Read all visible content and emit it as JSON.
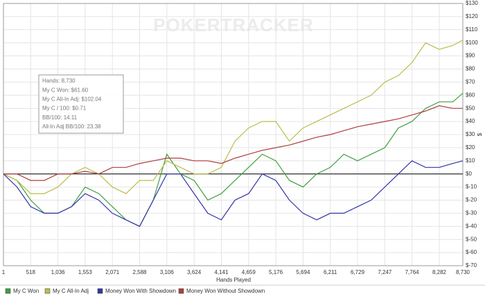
{
  "chart_data": {
    "type": "line",
    "watermark": "POKERTRACKER",
    "x_label": "Hands Played",
    "y_label": "$",
    "tooltip": [
      "Hands: 8,730",
      "My C Won: $61.60",
      "My C All-In Adj: $102.04",
      "My C / 100: $0.71",
      "BB/100: 14.11",
      "All-In Adj BB/100: 23.38"
    ],
    "x": [
      1,
      259,
      518,
      777,
      1036,
      1295,
      1553,
      1812,
      2071,
      2330,
      2588,
      2847,
      3106,
      3365,
      3624,
      3883,
      4141,
      4400,
      4659,
      4918,
      5176,
      5435,
      5694,
      5953,
      6211,
      6470,
      6729,
      6988,
      7247,
      7506,
      7764,
      8023,
      8282,
      8541,
      8730
    ],
    "series": [
      {
        "name": "My C Won",
        "color": "#3f9f3f",
        "values": [
          0,
          -5,
          -20,
          -30,
          -30,
          -25,
          -10,
          -15,
          -25,
          -35,
          -40,
          -20,
          15,
          0,
          -5,
          -20,
          -15,
          -5,
          5,
          15,
          10,
          -5,
          -10,
          0,
          5,
          15,
          10,
          15,
          20,
          35,
          40,
          50,
          55,
          55,
          61.6
        ]
      },
      {
        "name": "My C All-In Adj",
        "color": "#bcbc4c",
        "values": [
          0,
          -5,
          -15,
          -15,
          -10,
          0,
          5,
          0,
          -10,
          -15,
          -5,
          -5,
          10,
          5,
          0,
          0,
          5,
          25,
          35,
          40,
          40,
          25,
          35,
          40,
          45,
          50,
          55,
          60,
          70,
          75,
          85,
          100,
          95,
          98,
          102.04
        ]
      },
      {
        "name": "Money Won With Showdown",
        "color": "#3333a8",
        "values": [
          0,
          -10,
          -25,
          -30,
          -30,
          -25,
          -15,
          -20,
          -30,
          -35,
          -40,
          -20,
          0,
          0,
          -15,
          -30,
          -35,
          -20,
          -15,
          0,
          -5,
          -20,
          -30,
          -35,
          -30,
          -30,
          -25,
          -20,
          -10,
          0,
          10,
          5,
          5,
          8,
          10
        ]
      },
      {
        "name": "Money Won Without Showdown",
        "color": "#b03c3c",
        "values": [
          0,
          0,
          -5,
          -5,
          0,
          0,
          2,
          0,
          5,
          5,
          8,
          10,
          12,
          12,
          10,
          10,
          8,
          12,
          15,
          18,
          20,
          22,
          25,
          28,
          30,
          33,
          36,
          38,
          40,
          42,
          45,
          48,
          52,
          50,
          50
        ]
      }
    ],
    "xlim": [
      1,
      8730
    ],
    "xticks": [
      1,
      518,
      {
        "value": 1036,
        "label": "1,036"
      },
      {
        "value": 1553,
        "label": "1,553"
      },
      {
        "value": 2071,
        "label": "2,071"
      },
      {
        "value": 2588,
        "label": "2,588"
      },
      {
        "value": 3106,
        "label": "3,106"
      },
      {
        "value": 3624,
        "label": "3,624"
      },
      {
        "value": 4141,
        "label": "4,141"
      },
      {
        "value": 4659,
        "label": "4,659"
      },
      {
        "value": 5176,
        "label": "5,176"
      },
      {
        "value": 5694,
        "label": "5,694"
      },
      {
        "value": 6211,
        "label": "6,211"
      },
      {
        "value": 6729,
        "label": "6,729"
      },
      {
        "value": 7247,
        "label": "7,247"
      },
      {
        "value": 7764,
        "label": "7,764"
      },
      {
        "value": 8282,
        "label": "8,282"
      },
      {
        "value": 8730,
        "label": "8,730"
      }
    ],
    "ylim": [
      -70,
      130
    ],
    "yticks": [
      {
        "value": 130,
        "label": "$130"
      },
      {
        "value": 120,
        "label": "$120"
      },
      {
        "value": 110,
        "label": "$110"
      },
      {
        "value": 100,
        "label": "$100"
      },
      {
        "value": 90,
        "label": "$90"
      },
      {
        "value": 80,
        "label": "$80"
      },
      {
        "value": 70,
        "label": "$70"
      },
      {
        "value": 60,
        "label": "$60"
      },
      {
        "value": 50,
        "label": "$50"
      },
      {
        "value": 40,
        "label": "$40"
      },
      {
        "value": 30,
        "label": "$30"
      },
      {
        "value": 20,
        "label": "$20"
      },
      {
        "value": 10,
        "label": "$10"
      },
      {
        "value": 0,
        "label": "$0"
      },
      {
        "value": -10,
        "label": "$-10"
      },
      {
        "value": -20,
        "label": "$-20"
      },
      {
        "value": -30,
        "label": "$-30"
      },
      {
        "value": -40,
        "label": "$-40"
      },
      {
        "value": -50,
        "label": "$-50"
      },
      {
        "value": -60,
        "label": "$-60"
      },
      {
        "value": -70,
        "label": "$-70"
      }
    ],
    "grid": true
  }
}
